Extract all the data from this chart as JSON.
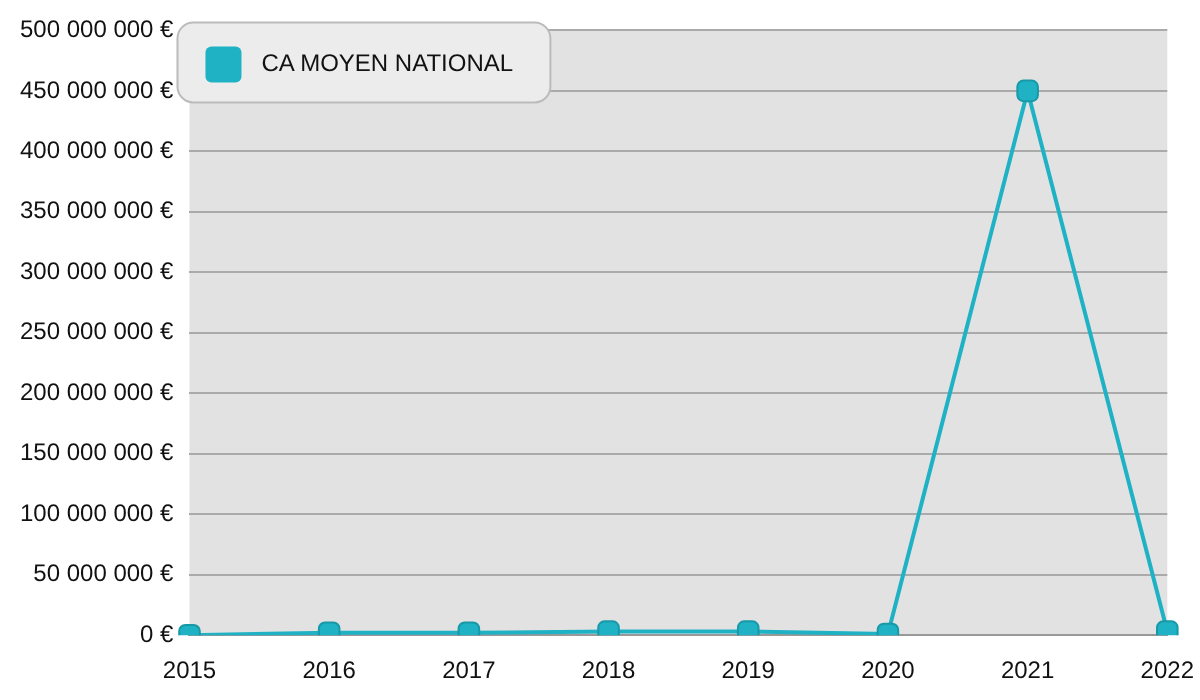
{
  "chart_data": {
    "type": "line",
    "categories": [
      "2015",
      "2016",
      "2017",
      "2018",
      "2019",
      "2020",
      "2021",
      "2022"
    ],
    "series": [
      {
        "name": "CA MOYEN NATIONAL",
        "color": "#1fb1c4",
        "values": [
          0,
          2000000,
          2000000,
          3000000,
          3000000,
          1000000,
          450000000,
          3000000
        ]
      }
    ],
    "ylim": [
      0,
      500000000
    ],
    "yticks": [
      {
        "value": 0,
        "label": "0 €"
      },
      {
        "value": 50000000,
        "label": "50 000 000 €"
      },
      {
        "value": 100000000,
        "label": "100 000 000 €"
      },
      {
        "value": 150000000,
        "label": "150 000 000 €"
      },
      {
        "value": 200000000,
        "label": "200 000 000 €"
      },
      {
        "value": 250000000,
        "label": "250 000 000 €"
      },
      {
        "value": 300000000,
        "label": "300 000 000 €"
      },
      {
        "value": 350000000,
        "label": "350 000 000 €"
      },
      {
        "value": 400000000,
        "label": "400 000 000 €"
      },
      {
        "value": 450000000,
        "label": "450 000 000 €"
      },
      {
        "value": 500000000,
        "label": "500 000 000 €"
      }
    ],
    "grid": "y",
    "legend": "top left",
    "marker": "square",
    "line_style": "solid"
  }
}
